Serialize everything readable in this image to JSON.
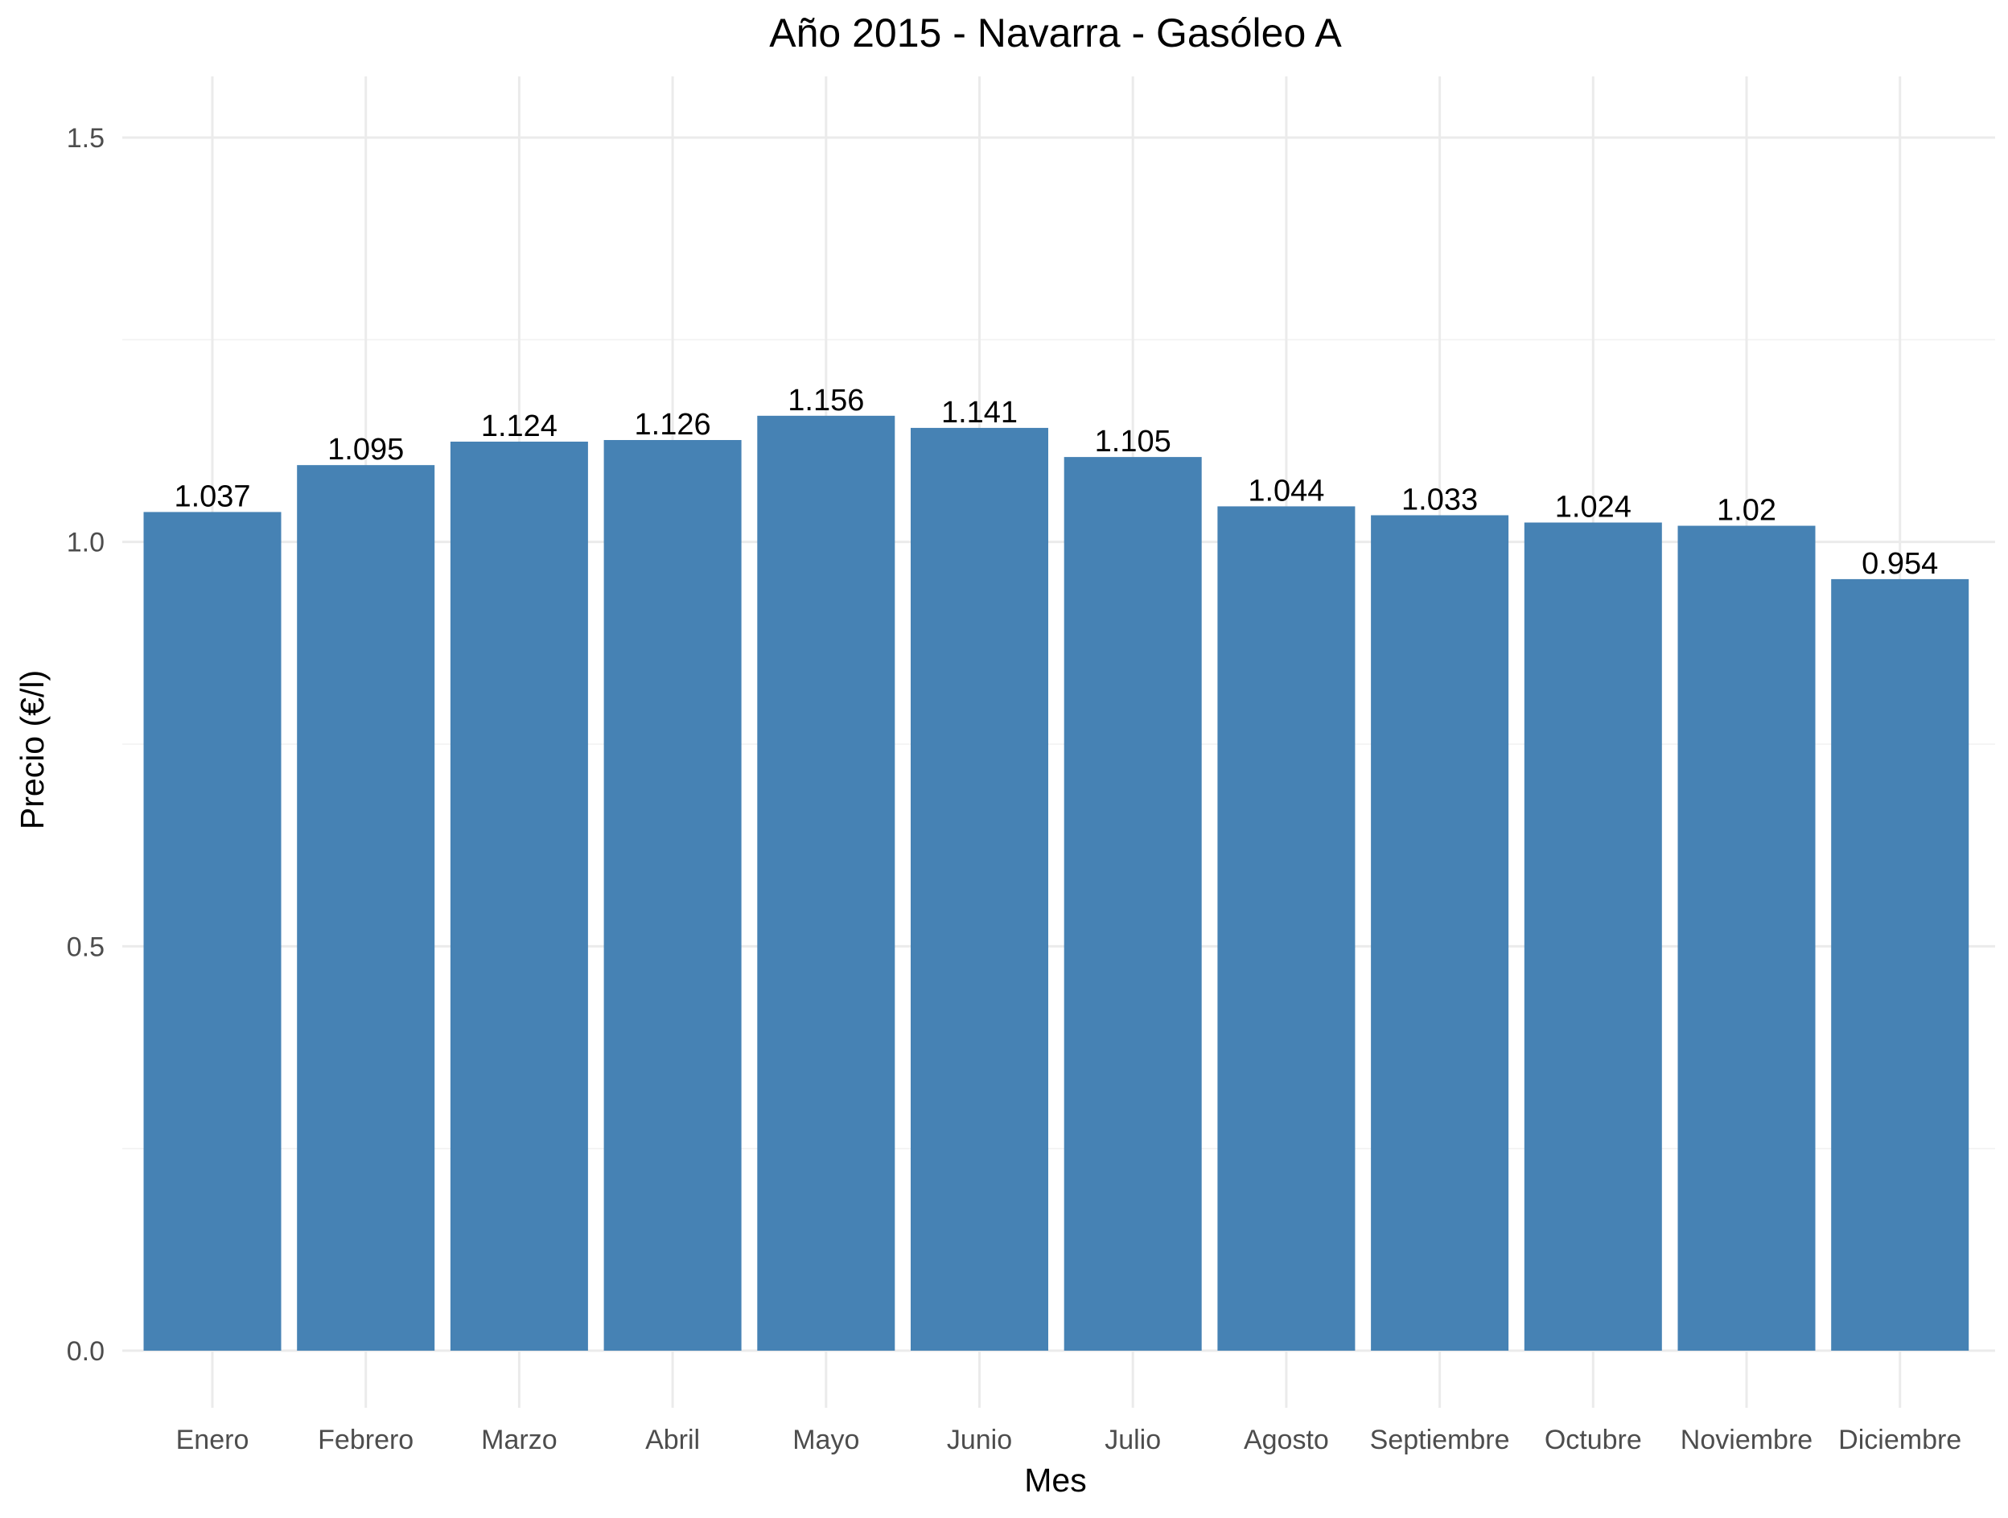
{
  "chart_data": {
    "type": "bar",
    "title": "Año 2015 - Navarra - Gasóleo A",
    "xlabel": "Mes",
    "ylabel": "Precio (€/l)",
    "categories": [
      "Enero",
      "Febrero",
      "Marzo",
      "Abril",
      "Mayo",
      "Junio",
      "Julio",
      "Agosto",
      "Septiembre",
      "Octubre",
      "Noviembre",
      "Diciembre"
    ],
    "values": [
      1.037,
      1.095,
      1.124,
      1.126,
      1.156,
      1.141,
      1.105,
      1.044,
      1.033,
      1.024,
      1.02,
      0.954
    ],
    "value_labels": [
      "1.037",
      "1.095",
      "1.124",
      "1.126",
      "1.156",
      "1.141",
      "1.105",
      "1.044",
      "1.033",
      "1.024",
      "1.02",
      "0.954"
    ],
    "y_ticks": [
      0.0,
      0.5,
      1.0,
      1.5
    ],
    "y_tick_labels": [
      "0.0",
      "0.5",
      "1.0",
      "1.5"
    ],
    "y_minor_ticks": [
      0.25,
      0.75,
      1.25
    ],
    "ylim": [
      0,
      1.5
    ],
    "grid": true,
    "legend": "none",
    "bar_color": "#4682b4"
  }
}
